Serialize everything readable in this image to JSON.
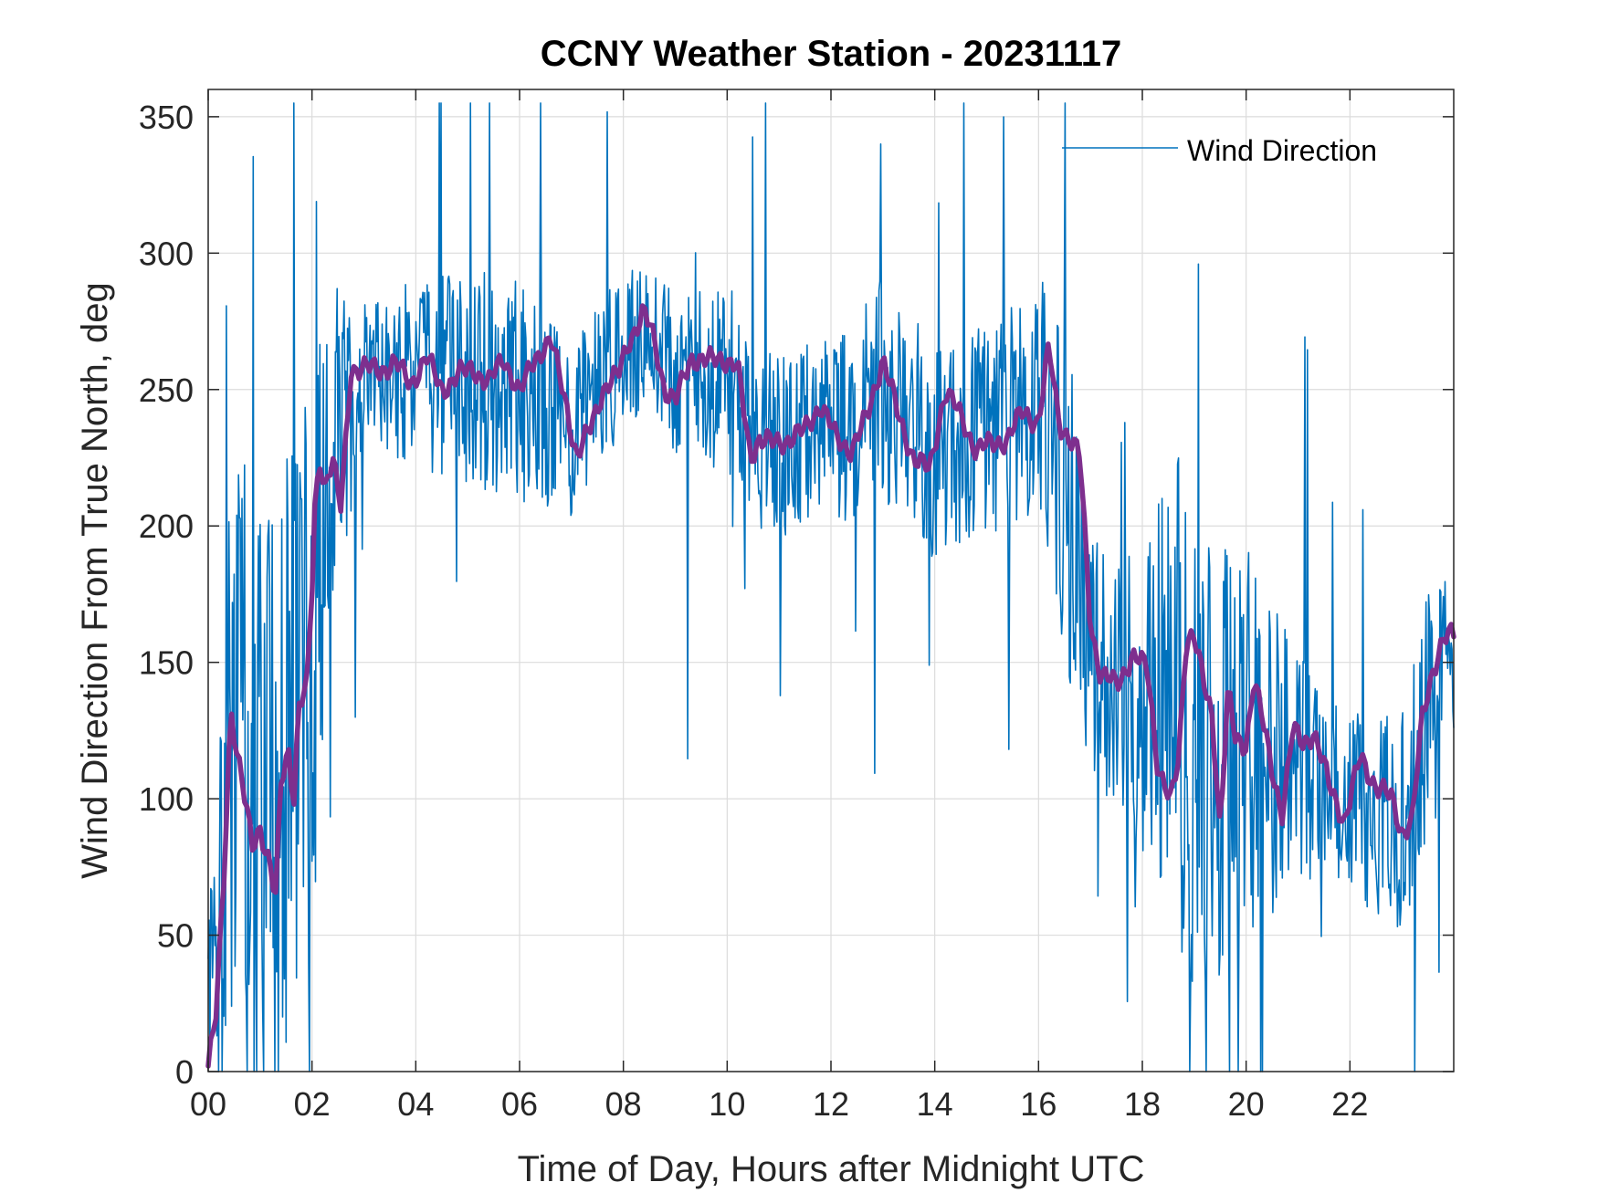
{
  "chart_data": {
    "type": "line",
    "title": "CCNY Weather Station - 20231117",
    "xlabel": "Time of Day, Hours after Midnight UTC",
    "ylabel": "Wind Direction From True North, deg",
    "xlim": [
      0,
      24
    ],
    "ylim": [
      0,
      360
    ],
    "xticks": [
      0,
      2,
      4,
      6,
      8,
      10,
      12,
      14,
      16,
      18,
      20,
      22
    ],
    "xtick_labels": [
      "00",
      "02",
      "04",
      "06",
      "08",
      "10",
      "12",
      "14",
      "16",
      "18",
      "20",
      "22"
    ],
    "yticks": [
      0,
      50,
      100,
      150,
      200,
      250,
      300,
      350
    ],
    "ytick_labels": [
      "0",
      "50",
      "100",
      "150",
      "200",
      "250",
      "300",
      "350"
    ],
    "grid": true,
    "legend": {
      "placement": "top-right",
      "entries": [
        "Wind Direction"
      ]
    },
    "series": [
      {
        "name": "Wind Direction",
        "color": "#0072BD",
        "style": "thin line, high-frequency noisy raw samples",
        "envelope": {
          "x": [
            0,
            0.5,
            1,
            1.5,
            2,
            2.5,
            3,
            4,
            5,
            6,
            7,
            8,
            8.5,
            9,
            10,
            10.5,
            11,
            12,
            13,
            14,
            15,
            16,
            16.5,
            17,
            18,
            18.5,
            19,
            20,
            21,
            22,
            23,
            23.5,
            24
          ],
          "center": [
            20,
            120,
            90,
            110,
            150,
            230,
            258,
            255,
            255,
            250,
            230,
            265,
            270,
            255,
            255,
            235,
            230,
            235,
            250,
            225,
            235,
            250,
            215,
            150,
            135,
            155,
            110,
            120,
            115,
            100,
            90,
            130,
            155
          ],
          "noise": [
            30,
            120,
            120,
            120,
            110,
            60,
            25,
            35,
            40,
            40,
            35,
            30,
            25,
            30,
            35,
            35,
            35,
            35,
            45,
            40,
            40,
            45,
            70,
            45,
            55,
            90,
            90,
            75,
            45,
            35,
            40,
            50,
            35
          ]
        }
      },
      {
        "name": "",
        "color": "#7E2F8E",
        "style": "thick smoothed running average",
        "x": [
          0,
          0.15,
          0.3,
          0.4,
          0.45,
          0.55,
          0.7,
          0.85,
          1.0,
          1.2,
          1.3,
          1.4,
          1.55,
          1.65,
          1.75,
          1.9,
          2.0,
          2.05,
          2.15,
          2.25,
          2.4,
          2.55,
          2.65,
          2.75,
          3.0,
          3.3,
          3.6,
          3.9,
          4.2,
          4.5,
          4.8,
          5.1,
          5.4,
          5.7,
          6.0,
          6.3,
          6.6,
          6.9,
          7.1,
          7.35,
          7.6,
          7.9,
          8.1,
          8.4,
          8.6,
          8.8,
          9.0,
          9.3,
          9.6,
          9.9,
          10.2,
          10.45,
          10.6,
          10.9,
          11.2,
          11.5,
          11.8,
          12.1,
          12.4,
          12.7,
          13.0,
          13.3,
          13.6,
          13.9,
          14.2,
          14.5,
          14.8,
          15.1,
          15.4,
          15.7,
          16.0,
          16.2,
          16.4,
          16.6,
          16.8,
          17.0,
          17.2,
          17.5,
          17.8,
          18.1,
          18.3,
          18.55,
          18.7,
          18.85,
          19.0,
          19.2,
          19.35,
          19.5,
          19.65,
          19.8,
          20.0,
          20.15,
          20.3,
          20.5,
          20.7,
          20.9,
          21.1,
          21.3,
          21.6,
          21.9,
          22.2,
          22.5,
          22.8,
          23.0,
          23.2,
          23.4,
          23.6,
          23.8,
          24.0
        ],
        "values": [
          2,
          20,
          70,
          118,
          132,
          118,
          100,
          82,
          90,
          75,
          62,
          105,
          118,
          100,
          135,
          140,
          175,
          205,
          225,
          215,
          225,
          205,
          230,
          258,
          258,
          257,
          260,
          252,
          262,
          250,
          255,
          258,
          252,
          262,
          248,
          262,
          268,
          245,
          225,
          235,
          250,
          255,
          268,
          278,
          268,
          250,
          245,
          262,
          260,
          262,
          258,
          225,
          232,
          230,
          232,
          235,
          245,
          232,
          228,
          240,
          262,
          240,
          225,
          220,
          250,
          240,
          228,
          230,
          232,
          242,
          238,
          265,
          238,
          232,
          225,
          165,
          145,
          142,
          152,
          148,
          112,
          98,
          115,
          160,
          160,
          140,
          130,
          90,
          140,
          120,
          120,
          145,
          130,
          110,
          95,
          125,
          120,
          125,
          105,
          92,
          115,
          105,
          100,
          88,
          92,
          130,
          148,
          158,
          160
        ]
      }
    ]
  }
}
